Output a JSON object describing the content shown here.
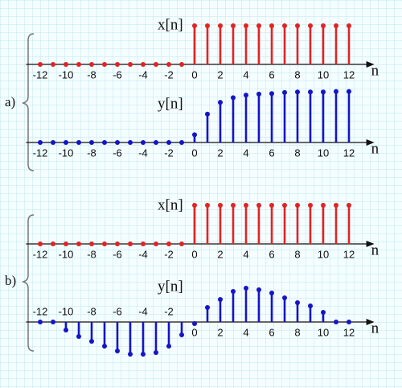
{
  "group_labels": [
    "a)",
    "b)"
  ],
  "chart_data": [
    {
      "type": "stem",
      "title": "x[n]",
      "x_label": "n",
      "color": "#e02424",
      "x": [
        -12,
        -11,
        -10,
        -9,
        -8,
        -7,
        -6,
        -5,
        -4,
        -3,
        -2,
        -1,
        0,
        1,
        2,
        3,
        4,
        5,
        6,
        7,
        8,
        9,
        10,
        11,
        12
      ],
      "values": [
        0,
        0,
        0,
        0,
        0,
        0,
        0,
        0,
        0,
        0,
        0,
        0,
        1,
        1,
        1,
        1,
        1,
        1,
        1,
        1,
        1,
        1,
        1,
        1,
        1
      ],
      "xlim": [
        -12.6,
        13.6
      ],
      "ylim": [
        0,
        1
      ],
      "xticks": [
        -12,
        -10,
        -8,
        -6,
        -4,
        -2,
        0,
        2,
        4,
        6,
        8,
        10,
        12
      ]
    },
    {
      "type": "stem",
      "title": "y[n]",
      "x_label": "n",
      "color": "#1414c8",
      "x": [
        -12,
        -11,
        -10,
        -9,
        -8,
        -7,
        -6,
        -5,
        -4,
        -3,
        -2,
        -1,
        0,
        1,
        2,
        3,
        4,
        5,
        6,
        7,
        8,
        9,
        10,
        11,
        12
      ],
      "values": [
        0,
        0,
        0,
        0,
        0,
        0,
        0,
        0,
        0,
        0,
        0,
        0,
        0.15,
        0.55,
        0.78,
        0.87,
        0.92,
        0.94,
        0.95,
        0.97,
        0.98,
        0.98,
        0.98,
        0.99,
        0.99
      ],
      "xlim": [
        -12.6,
        13.6
      ],
      "ylim": [
        0,
        1
      ],
      "xticks": [
        -12,
        -10,
        -8,
        -6,
        -4,
        -2,
        0,
        2,
        4,
        6,
        8,
        10,
        12
      ]
    },
    {
      "type": "stem",
      "title": "x[n]",
      "x_label": "n",
      "color": "#e02424",
      "x": [
        -12,
        -11,
        -10,
        -9,
        -8,
        -7,
        -6,
        -5,
        -4,
        -3,
        -2,
        -1,
        0,
        1,
        2,
        3,
        4,
        5,
        6,
        7,
        8,
        9,
        10,
        11,
        12
      ],
      "values": [
        0,
        0,
        0,
        0,
        0,
        0,
        0,
        0,
        0,
        0,
        0,
        0,
        1,
        1,
        1,
        1,
        1,
        1,
        1,
        1,
        1,
        1,
        1,
        1,
        1
      ],
      "xlim": [
        -12.6,
        13.6
      ],
      "ylim": [
        0,
        1
      ],
      "xticks": [
        -12,
        -10,
        -8,
        -6,
        -4,
        -2,
        0,
        2,
        4,
        6,
        8,
        10,
        12
      ]
    },
    {
      "type": "stem",
      "title": "y[n]",
      "x_label": "n",
      "color": "#1414c8",
      "x": [
        -12,
        -11,
        -10,
        -9,
        -8,
        -7,
        -6,
        -5,
        -4,
        -3,
        -2,
        -1,
        0,
        1,
        2,
        3,
        4,
        5,
        6,
        7,
        8,
        9,
        10,
        11,
        12
      ],
      "values": [
        0,
        0,
        -0.25,
        -0.45,
        -0.6,
        -0.75,
        -0.9,
        -1,
        -1,
        -0.95,
        -0.75,
        -0.4,
        -0.05,
        0.45,
        0.7,
        0.95,
        1.05,
        1,
        0.9,
        0.75,
        0.6,
        0.5,
        0.3,
        0,
        0
      ],
      "xlim": [
        -12.6,
        13.6
      ],
      "ylim": [
        -1.05,
        1.05
      ],
      "xticks": [
        -12,
        -10,
        -8,
        -6,
        -4,
        -2,
        0,
        2,
        4,
        6,
        8,
        10,
        12
      ]
    }
  ]
}
